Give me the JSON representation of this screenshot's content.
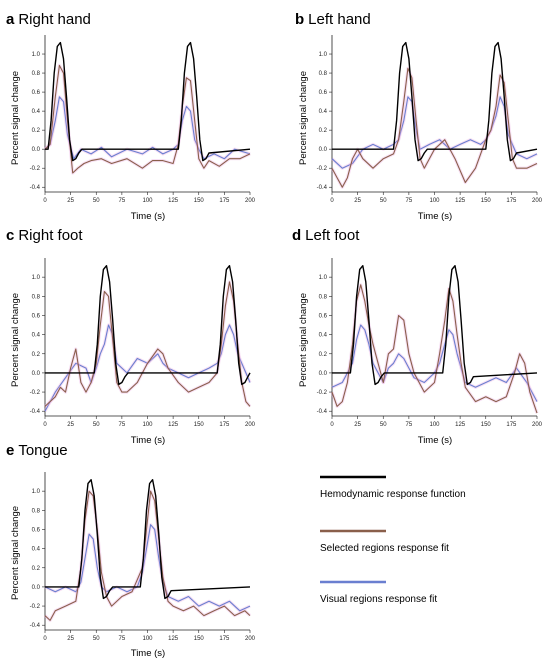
{
  "colors": {
    "hrf": "#000000",
    "selected": "#8a5f4b",
    "visual": "#6a7fd0",
    "shade": "#e8a6e0"
  },
  "legend": [
    {
      "key": "hrf",
      "label": "Hemodynamic response function"
    },
    {
      "key": "selected",
      "label": "Selected regions response fit"
    },
    {
      "key": "visual",
      "label": "Visual regions response fit"
    }
  ],
  "chart_data": [
    {
      "type": "line",
      "letter": "a",
      "title": "Right hand",
      "xlabel": "Time (s)",
      "ylabel": "Percent signal change",
      "xlim": [
        0,
        200
      ],
      "ylim": [
        -0.45,
        1.2
      ],
      "xticks": [
        0,
        25,
        50,
        75,
        100,
        125,
        150,
        175,
        200
      ],
      "yticks": [
        -0.4,
        -0.2,
        0.0,
        0.2,
        0.4,
        0.6,
        0.8,
        1.0
      ],
      "series": [
        {
          "key": "hrf",
          "x": [
            0,
            3,
            6,
            9,
            12,
            15,
            18,
            21,
            24,
            27,
            30,
            33,
            36,
            130,
            133,
            136,
            139,
            142,
            145,
            148,
            151,
            154,
            157,
            160,
            200
          ],
          "y": [
            0,
            0,
            0.3,
            0.8,
            1.08,
            1.12,
            0.95,
            0.55,
            0.1,
            -0.12,
            -0.1,
            -0.04,
            0,
            0,
            0.3,
            0.8,
            1.08,
            1.12,
            0.95,
            0.55,
            0.1,
            -0.12,
            -0.1,
            -0.04,
            0
          ]
        },
        {
          "key": "selected",
          "x": [
            0,
            5,
            10,
            14,
            18,
            22,
            27,
            32,
            38,
            45,
            55,
            65,
            80,
            95,
            105,
            115,
            125,
            130,
            134,
            138,
            142,
            146,
            150,
            155,
            160,
            170,
            180,
            190,
            200
          ],
          "y": [
            0,
            0.05,
            0.55,
            0.88,
            0.8,
            0.3,
            -0.25,
            -0.2,
            -0.15,
            -0.12,
            -0.1,
            -0.15,
            -0.1,
            -0.2,
            -0.12,
            -0.12,
            -0.15,
            0.05,
            0.45,
            0.75,
            0.72,
            0.3,
            -0.1,
            -0.2,
            -0.12,
            -0.18,
            -0.1,
            -0.1,
            -0.05
          ]
        },
        {
          "key": "visual",
          "x": [
            0,
            5,
            10,
            14,
            18,
            22,
            28,
            35,
            45,
            55,
            65,
            80,
            95,
            105,
            115,
            125,
            130,
            134,
            138,
            142,
            146,
            150,
            155,
            165,
            175,
            185,
            200
          ],
          "y": [
            0,
            0.05,
            0.3,
            0.55,
            0.5,
            0.15,
            -0.1,
            0,
            -0.05,
            0.02,
            -0.08,
            0,
            -0.05,
            0.02,
            -0.05,
            0,
            0.05,
            0.3,
            0.45,
            0.4,
            0.1,
            0,
            -0.1,
            -0.05,
            -0.1,
            0,
            -0.05
          ]
        }
      ]
    },
    {
      "type": "line",
      "letter": "b",
      "title": "Left hand",
      "xlabel": "Time (s)",
      "ylabel": "Percent signal change",
      "xlim": [
        0,
        200
      ],
      "ylim": [
        -0.45,
        1.2
      ],
      "xticks": [
        0,
        25,
        50,
        75,
        100,
        125,
        150,
        175,
        200
      ],
      "yticks": [
        -0.4,
        -0.2,
        0.0,
        0.2,
        0.4,
        0.6,
        0.8,
        1.0
      ],
      "series": [
        {
          "key": "hrf",
          "x": [
            0,
            60,
            63,
            66,
            69,
            72,
            75,
            78,
            81,
            84,
            87,
            90,
            93,
            150,
            153,
            156,
            159,
            162,
            165,
            168,
            171,
            174,
            177,
            180,
            200
          ],
          "y": [
            0,
            0,
            0.3,
            0.8,
            1.08,
            1.12,
            0.95,
            0.55,
            0.1,
            -0.12,
            -0.1,
            -0.04,
            0,
            0,
            0.3,
            0.8,
            1.08,
            1.12,
            0.95,
            0.55,
            0.1,
            -0.12,
            -0.1,
            -0.04,
            0
          ]
        },
        {
          "key": "selected",
          "x": [
            0,
            5,
            10,
            15,
            20,
            25,
            30,
            40,
            50,
            60,
            65,
            70,
            74,
            78,
            82,
            86,
            90,
            100,
            110,
            120,
            130,
            140,
            150,
            155,
            160,
            164,
            168,
            172,
            176,
            180,
            190,
            200
          ],
          "y": [
            -0.2,
            -0.3,
            -0.4,
            -0.3,
            -0.1,
            0,
            -0.1,
            -0.2,
            -0.1,
            -0.05,
            0.1,
            0.5,
            0.85,
            0.75,
            0.3,
            -0.1,
            -0.2,
            0,
            0.1,
            -0.1,
            -0.35,
            -0.2,
            0.1,
            0.2,
            0.45,
            0.78,
            0.7,
            0.3,
            -0.1,
            -0.2,
            -0.2,
            -0.15
          ]
        },
        {
          "key": "visual",
          "x": [
            0,
            10,
            20,
            30,
            40,
            50,
            60,
            65,
            70,
            74,
            78,
            82,
            86,
            95,
            105,
            115,
            125,
            135,
            145,
            150,
            155,
            160,
            164,
            168,
            172,
            180,
            190,
            200
          ],
          "y": [
            -0.1,
            -0.2,
            -0.15,
            0,
            0.05,
            0,
            0.05,
            0.1,
            0.3,
            0.55,
            0.5,
            0.2,
            0,
            0.05,
            0.1,
            0,
            0.05,
            0.1,
            0.05,
            0.1,
            0.2,
            0.35,
            0.55,
            0.45,
            0.15,
            -0.05,
            -0.1,
            -0.05
          ]
        }
      ]
    },
    {
      "type": "line",
      "letter": "c",
      "title": "Right foot",
      "xlabel": "Time (s)",
      "ylabel": "Percent signal change",
      "xlim": [
        0,
        200
      ],
      "ylim": [
        -0.45,
        1.2
      ],
      "xticks": [
        0,
        25,
        50,
        75,
        100,
        125,
        150,
        175,
        200
      ],
      "yticks": [
        -0.4,
        -0.2,
        0.0,
        0.2,
        0.4,
        0.6,
        0.8,
        1.0
      ],
      "series": [
        {
          "key": "hrf",
          "x": [
            0,
            48,
            51,
            54,
            57,
            60,
            63,
            66,
            69,
            72,
            75,
            78,
            81,
            168,
            171,
            174,
            177,
            180,
            183,
            186,
            189,
            192,
            195,
            198,
            200
          ],
          "y": [
            0,
            0,
            0.3,
            0.8,
            1.08,
            1.12,
            0.95,
            0.55,
            0.1,
            -0.12,
            -0.1,
            -0.04,
            0,
            0,
            0.3,
            0.8,
            1.08,
            1.12,
            0.95,
            0.55,
            0.1,
            -0.12,
            -0.1,
            -0.04,
            0
          ]
        },
        {
          "key": "selected",
          "x": [
            0,
            5,
            10,
            15,
            20,
            25,
            30,
            35,
            40,
            45,
            50,
            54,
            58,
            62,
            66,
            70,
            75,
            80,
            90,
            100,
            110,
            115,
            120,
            130,
            140,
            150,
            160,
            168,
            172,
            176,
            180,
            184,
            188,
            192,
            196,
            200
          ],
          "y": [
            -0.35,
            -0.3,
            -0.25,
            -0.15,
            -0.2,
            0.05,
            0.25,
            -0.1,
            -0.2,
            -0.1,
            0.1,
            0.5,
            0.85,
            0.8,
            0.35,
            -0.1,
            -0.2,
            -0.2,
            -0.1,
            0.1,
            0.25,
            0.2,
            0.05,
            -0.1,
            -0.2,
            -0.15,
            -0.1,
            0,
            0.3,
            0.7,
            0.95,
            0.75,
            0.3,
            -0.1,
            -0.3,
            -0.35
          ]
        },
        {
          "key": "visual",
          "x": [
            0,
            10,
            20,
            30,
            40,
            45,
            50,
            54,
            58,
            62,
            66,
            70,
            80,
            90,
            100,
            110,
            115,
            120,
            130,
            140,
            150,
            160,
            168,
            172,
            176,
            180,
            184,
            188,
            196,
            200
          ],
          "y": [
            -0.4,
            -0.2,
            -0.05,
            0.1,
            0.05,
            -0.1,
            0.05,
            0.2,
            0.3,
            0.5,
            0.4,
            0.1,
            0,
            0.15,
            0.1,
            0.2,
            0.1,
            0.05,
            0,
            -0.05,
            0,
            0.05,
            0.1,
            0.2,
            0.4,
            0.5,
            0.4,
            0.2,
            0,
            -0.1
          ]
        }
      ]
    },
    {
      "type": "line",
      "letter": "d",
      "title": "Left foot",
      "xlabel": "Time (s)",
      "ylabel": "Percent signal change",
      "xlim": [
        0,
        200
      ],
      "ylim": [
        -0.45,
        1.2
      ],
      "xticks": [
        0,
        25,
        50,
        75,
        100,
        125,
        150,
        175,
        200
      ],
      "yticks": [
        -0.4,
        -0.2,
        0.0,
        0.2,
        0.4,
        0.6,
        0.8,
        1.0
      ],
      "series": [
        {
          "key": "hrf",
          "x": [
            0,
            18,
            21,
            24,
            27,
            30,
            33,
            36,
            39,
            42,
            45,
            48,
            51,
            108,
            111,
            114,
            117,
            120,
            123,
            126,
            129,
            132,
            135,
            138,
            200
          ],
          "y": [
            0,
            0,
            0.3,
            0.8,
            1.08,
            1.12,
            0.95,
            0.55,
            0.1,
            -0.12,
            -0.1,
            -0.04,
            0,
            0,
            0.3,
            0.8,
            1.08,
            1.12,
            0.95,
            0.55,
            0.1,
            -0.12,
            -0.1,
            -0.04,
            0
          ]
        },
        {
          "key": "selected",
          "x": [
            0,
            5,
            10,
            15,
            20,
            24,
            28,
            32,
            36,
            40,
            45,
            50,
            55,
            60,
            65,
            70,
            75,
            80,
            90,
            100,
            105,
            110,
            114,
            118,
            122,
            126,
            130,
            140,
            150,
            160,
            170,
            178,
            183,
            188,
            193,
            200
          ],
          "y": [
            -0.2,
            -0.35,
            -0.3,
            -0.1,
            0.3,
            0.75,
            0.92,
            0.75,
            0.5,
            0.3,
            0.1,
            -0.1,
            0.2,
            0.25,
            0.6,
            0.55,
            0.2,
            0,
            -0.2,
            -0.1,
            0.2,
            0.55,
            0.88,
            0.75,
            0.4,
            0.1,
            -0.15,
            -0.3,
            -0.25,
            -0.3,
            -0.25,
            0,
            0.2,
            0.1,
            -0.2,
            -0.42
          ]
        },
        {
          "key": "visual",
          "x": [
            0,
            10,
            20,
            24,
            28,
            32,
            36,
            40,
            45,
            50,
            55,
            60,
            65,
            70,
            75,
            80,
            90,
            100,
            105,
            110,
            114,
            118,
            122,
            126,
            130,
            140,
            150,
            160,
            170,
            180,
            190,
            200
          ],
          "y": [
            -0.15,
            -0.1,
            0.1,
            0.35,
            0.5,
            0.45,
            0.3,
            0.1,
            0,
            -0.1,
            0.05,
            0.1,
            0.2,
            0.15,
            0.05,
            -0.05,
            -0.1,
            0,
            0.1,
            0.3,
            0.45,
            0.4,
            0.2,
            0.05,
            -0.1,
            -0.15,
            -0.1,
            -0.05,
            -0.1,
            0.05,
            -0.1,
            -0.3
          ]
        }
      ]
    },
    {
      "type": "line",
      "letter": "e",
      "title": "Tongue",
      "xlabel": "Time (s)",
      "ylabel": "Percent signal change",
      "xlim": [
        0,
        200
      ],
      "ylim": [
        -0.45,
        1.2
      ],
      "xticks": [
        0,
        25,
        50,
        75,
        100,
        125,
        150,
        175,
        200
      ],
      "yticks": [
        -0.4,
        -0.2,
        0.0,
        0.2,
        0.4,
        0.6,
        0.8,
        1.0
      ],
      "series": [
        {
          "key": "hrf",
          "x": [
            0,
            33,
            36,
            39,
            42,
            45,
            48,
            51,
            54,
            57,
            60,
            63,
            66,
            93,
            96,
            99,
            102,
            105,
            108,
            111,
            114,
            117,
            120,
            123,
            200
          ],
          "y": [
            0,
            0,
            0.3,
            0.8,
            1.08,
            1.12,
            0.95,
            0.55,
            0.1,
            -0.12,
            -0.1,
            -0.04,
            0,
            0,
            0.3,
            0.8,
            1.08,
            1.12,
            0.95,
            0.55,
            0.1,
            -0.12,
            -0.1,
            -0.04,
            0
          ]
        },
        {
          "key": "selected",
          "x": [
            0,
            5,
            10,
            20,
            30,
            35,
            39,
            43,
            47,
            51,
            55,
            60,
            65,
            75,
            85,
            95,
            99,
            103,
            107,
            111,
            115,
            120,
            125,
            135,
            145,
            155,
            165,
            175,
            185,
            195,
            200
          ],
          "y": [
            -0.3,
            -0.35,
            -0.25,
            -0.2,
            -0.15,
            0.2,
            0.7,
            1.0,
            0.95,
            0.6,
            0.15,
            -0.1,
            -0.2,
            -0.1,
            -0.05,
            0.2,
            0.6,
            1.0,
            0.9,
            0.5,
            0.1,
            -0.15,
            -0.2,
            -0.25,
            -0.2,
            -0.3,
            -0.25,
            -0.2,
            -0.3,
            -0.25,
            -0.3
          ]
        },
        {
          "key": "visual",
          "x": [
            0,
            10,
            20,
            30,
            35,
            39,
            43,
            47,
            51,
            55,
            60,
            70,
            80,
            90,
            95,
            99,
            103,
            107,
            111,
            115,
            120,
            130,
            140,
            150,
            160,
            170,
            180,
            190,
            200
          ],
          "y": [
            0,
            -0.05,
            0,
            -0.05,
            0.05,
            0.3,
            0.55,
            0.5,
            0.2,
            0,
            -0.05,
            0,
            -0.05,
            0,
            0.15,
            0.4,
            0.65,
            0.6,
            0.3,
            0.05,
            -0.1,
            -0.15,
            -0.1,
            -0.2,
            -0.15,
            -0.2,
            -0.15,
            -0.25,
            -0.2
          ]
        }
      ]
    }
  ]
}
